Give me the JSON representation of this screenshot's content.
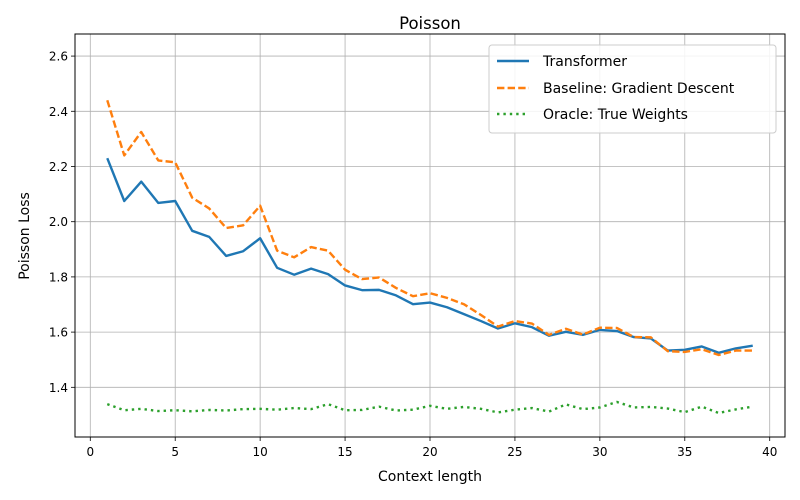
{
  "chart_data": {
    "type": "line",
    "title": "Poisson",
    "xlabel": "Context length",
    "ylabel": "Poisson Loss",
    "xlim": [
      -0.9,
      40.9
    ],
    "ylim": [
      1.22,
      2.68
    ],
    "xticks": [
      0,
      5,
      10,
      15,
      20,
      25,
      30,
      35,
      40
    ],
    "yticks": [
      1.4,
      1.6,
      1.8,
      2.0,
      2.2,
      2.4,
      2.6
    ],
    "ytick_labels": [
      "1.4",
      "1.6",
      "1.8",
      "2.0",
      "2.2",
      "2.4",
      "2.6"
    ],
    "grid": true,
    "legend_position": "top-right",
    "x": [
      1,
      2,
      3,
      4,
      5,
      6,
      7,
      8,
      9,
      10,
      11,
      12,
      13,
      14,
      15,
      16,
      17,
      18,
      19,
      20,
      21,
      22,
      23,
      24,
      25,
      26,
      27,
      28,
      29,
      30,
      31,
      32,
      33,
      34,
      35,
      36,
      37,
      38,
      39
    ],
    "series": [
      {
        "name": "Transformer",
        "color": "#1f77b4",
        "style": "solid",
        "values": [
          2.23,
          2.075,
          2.145,
          2.068,
          2.075,
          1.967,
          1.945,
          1.876,
          1.893,
          1.94,
          1.833,
          1.808,
          1.83,
          1.81,
          1.769,
          1.752,
          1.753,
          1.733,
          1.701,
          1.707,
          1.69,
          1.665,
          1.64,
          1.613,
          1.632,
          1.618,
          1.587,
          1.601,
          1.59,
          1.608,
          1.604,
          1.582,
          1.577,
          1.533,
          1.536,
          1.548,
          1.525,
          1.541,
          1.551
        ]
      },
      {
        "name": "Baseline: Gradient Descent",
        "color": "#ff7f0e",
        "style": "dashed",
        "values": [
          2.44,
          2.24,
          2.325,
          2.222,
          2.215,
          2.087,
          2.048,
          1.977,
          1.987,
          2.058,
          1.895,
          1.871,
          1.908,
          1.895,
          1.826,
          1.792,
          1.798,
          1.76,
          1.73,
          1.741,
          1.724,
          1.701,
          1.662,
          1.62,
          1.64,
          1.631,
          1.59,
          1.612,
          1.591,
          1.616,
          1.615,
          1.582,
          1.581,
          1.531,
          1.528,
          1.538,
          1.517,
          1.533,
          1.533
        ]
      },
      {
        "name": "Oracle: True Weights",
        "color": "#2ca02c",
        "style": "dotted",
        "values": [
          1.339,
          1.317,
          1.322,
          1.314,
          1.317,
          1.313,
          1.318,
          1.316,
          1.321,
          1.322,
          1.319,
          1.325,
          1.321,
          1.339,
          1.317,
          1.318,
          1.33,
          1.316,
          1.319,
          1.333,
          1.322,
          1.329,
          1.322,
          1.309,
          1.319,
          1.325,
          1.312,
          1.338,
          1.321,
          1.327,
          1.347,
          1.327,
          1.329,
          1.323,
          1.31,
          1.33,
          1.307,
          1.32,
          1.33
        ]
      }
    ]
  }
}
